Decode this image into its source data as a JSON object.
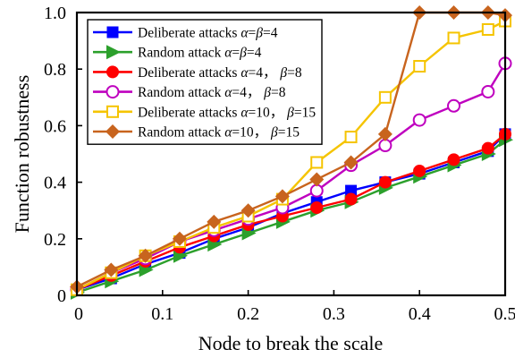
{
  "chart_data": {
    "type": "line",
    "title": "",
    "xlabel": "Node to break the scale",
    "ylabel": "Function robustness",
    "xlim": [
      0,
      0.5
    ],
    "ylim": [
      0,
      1.0
    ],
    "xticks": [
      "0",
      "0.1",
      "0.2",
      "0.3",
      "0.4",
      "0.5"
    ],
    "yticks": [
      "0",
      "0.2",
      "0.4",
      "0.6",
      "0.8",
      "1.0"
    ],
    "grid": false,
    "legend_position": "top-left",
    "series": [
      {
        "name": "Deliberate attacks α=β=4",
        "legend_parts": [
          {
            "t": "Deliberate attacks ",
            "italic": false
          },
          {
            "t": "α",
            "italic": true
          },
          {
            "t": "=",
            "italic": false
          },
          {
            "t": "β",
            "italic": true
          },
          {
            "t": "=4",
            "italic": false
          }
        ],
        "color": "#0000ff",
        "marker": "square",
        "x": [
          0,
          0.04,
          0.08,
          0.12,
          0.16,
          0.2,
          0.24,
          0.28,
          0.32,
          0.36,
          0.4,
          0.44,
          0.48,
          0.5
        ],
        "y": [
          0.02,
          0.06,
          0.11,
          0.15,
          0.2,
          0.24,
          0.29,
          0.33,
          0.37,
          0.4,
          0.43,
          0.47,
          0.51,
          0.57
        ]
      },
      {
        "name": "Random attack α=β=4",
        "legend_parts": [
          {
            "t": "Random attack ",
            "italic": false
          },
          {
            "t": "α",
            "italic": true
          },
          {
            "t": "=",
            "italic": false
          },
          {
            "t": "β",
            "italic": true
          },
          {
            "t": "=4",
            "italic": false
          }
        ],
        "color": "#2ca02c",
        "marker": "triangle-right",
        "x": [
          0,
          0.04,
          0.08,
          0.12,
          0.16,
          0.2,
          0.24,
          0.28,
          0.32,
          0.36,
          0.4,
          0.44,
          0.48,
          0.5
        ],
        "y": [
          0.01,
          0.05,
          0.09,
          0.14,
          0.18,
          0.22,
          0.26,
          0.3,
          0.33,
          0.38,
          0.42,
          0.46,
          0.5,
          0.55
        ]
      },
      {
        "name": "Deliberate attacks α=4, β=8",
        "legend_parts": [
          {
            "t": "Deliberate attacks ",
            "italic": false
          },
          {
            "t": "α",
            "italic": true
          },
          {
            "t": "=4， ",
            "italic": false
          },
          {
            "t": "β",
            "italic": true
          },
          {
            "t": "=8",
            "italic": false
          }
        ],
        "color": "#ff0000",
        "marker": "circle",
        "x": [
          0,
          0.04,
          0.08,
          0.12,
          0.16,
          0.2,
          0.24,
          0.28,
          0.32,
          0.36,
          0.4,
          0.44,
          0.48,
          0.5
        ],
        "y": [
          0.02,
          0.07,
          0.12,
          0.17,
          0.21,
          0.25,
          0.28,
          0.31,
          0.34,
          0.4,
          0.44,
          0.48,
          0.52,
          0.57
        ]
      },
      {
        "name": "Random attack α=4, β=8",
        "legend_parts": [
          {
            "t": "Random attack ",
            "italic": false
          },
          {
            "t": "α",
            "italic": true
          },
          {
            "t": "=4， ",
            "italic": false
          },
          {
            "t": "β",
            "italic": true
          },
          {
            "t": "=8",
            "italic": false
          }
        ],
        "color": "#bf00bf",
        "marker": "circle-open",
        "x": [
          0,
          0.04,
          0.08,
          0.12,
          0.16,
          0.2,
          0.24,
          0.28,
          0.32,
          0.36,
          0.4,
          0.44,
          0.48,
          0.5
        ],
        "y": [
          0.02,
          0.08,
          0.13,
          0.19,
          0.23,
          0.27,
          0.31,
          0.37,
          0.46,
          0.53,
          0.62,
          0.67,
          0.72,
          0.82
        ]
      },
      {
        "name": "Deliberate attacks α=10, β=15",
        "legend_parts": [
          {
            "t": "Deliberate attacks ",
            "italic": false
          },
          {
            "t": "α",
            "italic": true
          },
          {
            "t": "=10， ",
            "italic": false
          },
          {
            "t": "β",
            "italic": true
          },
          {
            "t": "=15",
            "italic": false
          }
        ],
        "color": "#f5c400",
        "marker": "square-open",
        "x": [
          0,
          0.04,
          0.08,
          0.12,
          0.16,
          0.2,
          0.24,
          0.28,
          0.32,
          0.36,
          0.4,
          0.44,
          0.48,
          0.5
        ],
        "y": [
          0.02,
          0.08,
          0.14,
          0.19,
          0.24,
          0.28,
          0.34,
          0.47,
          0.56,
          0.7,
          0.81,
          0.91,
          0.94,
          0.97
        ]
      },
      {
        "name": "Random attack α=10, β=15",
        "legend_parts": [
          {
            "t": "Random attack ",
            "italic": false
          },
          {
            "t": "α",
            "italic": true
          },
          {
            "t": "=10， ",
            "italic": false
          },
          {
            "t": "β",
            "italic": true
          },
          {
            "t": "=15",
            "italic": false
          }
        ],
        "color": "#c8641e",
        "marker": "diamond",
        "x": [
          0,
          0.04,
          0.08,
          0.12,
          0.16,
          0.2,
          0.24,
          0.28,
          0.32,
          0.36,
          0.4,
          0.44,
          0.48,
          0.5
        ],
        "y": [
          0.03,
          0.09,
          0.14,
          0.2,
          0.26,
          0.3,
          0.35,
          0.41,
          0.47,
          0.57,
          1.0,
          1.0,
          1.0,
          0.99
        ]
      }
    ]
  }
}
